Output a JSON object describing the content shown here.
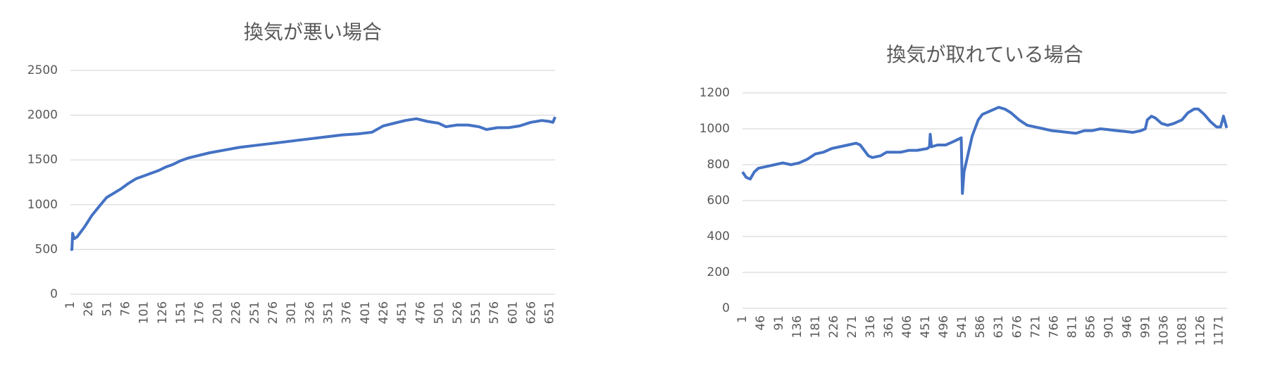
{
  "chart_data": [
    {
      "type": "line",
      "title": "換気が悪い場合",
      "color": "#4472c4",
      "xlim": [
        1,
        658
      ],
      "ylim": [
        0,
        2500
      ],
      "xticks": [
        1,
        26,
        51,
        76,
        101,
        126,
        151,
        176,
        201,
        226,
        251,
        276,
        301,
        326,
        351,
        376,
        401,
        426,
        451,
        476,
        501,
        526,
        551,
        576,
        601,
        626,
        651
      ],
      "yticks": [
        0,
        500,
        1000,
        1500,
        2000,
        2500
      ],
      "grid": true,
      "x": [
        1,
        3,
        4,
        6,
        10,
        20,
        30,
        40,
        50,
        60,
        70,
        80,
        90,
        100,
        110,
        120,
        130,
        140,
        150,
        160,
        175,
        190,
        210,
        230,
        250,
        270,
        290,
        310,
        330,
        350,
        370,
        390,
        410,
        425,
        440,
        455,
        470,
        485,
        500,
        510,
        525,
        540,
        555,
        565,
        580,
        595,
        610,
        625,
        640,
        650,
        655,
        658
      ],
      "values": [
        500,
        500,
        680,
        620,
        640,
        750,
        880,
        980,
        1080,
        1130,
        1180,
        1240,
        1290,
        1320,
        1350,
        1380,
        1420,
        1450,
        1490,
        1520,
        1550,
        1580,
        1610,
        1640,
        1660,
        1680,
        1700,
        1720,
        1740,
        1760,
        1780,
        1790,
        1810,
        1880,
        1910,
        1940,
        1960,
        1930,
        1910,
        1870,
        1890,
        1890,
        1870,
        1840,
        1860,
        1860,
        1880,
        1920,
        1940,
        1930,
        1920,
        1980
      ]
    },
    {
      "type": "line",
      "title": "換気が取れている場合",
      "color": "#4472c4",
      "xlim": [
        1,
        1191
      ],
      "ylim": [
        0,
        1200
      ],
      "xticks": [
        1,
        46,
        91,
        136,
        181,
        226,
        271,
        316,
        361,
        406,
        451,
        496,
        541,
        586,
        631,
        676,
        721,
        766,
        811,
        856,
        901,
        946,
        991,
        1036,
        1081,
        1126,
        1171
      ],
      "yticks": [
        0,
        200,
        400,
        600,
        800,
        1000,
        1200
      ],
      "grid": true,
      "x": [
        1,
        10,
        20,
        30,
        40,
        60,
        80,
        100,
        120,
        140,
        160,
        180,
        200,
        220,
        240,
        260,
        280,
        290,
        300,
        310,
        320,
        340,
        355,
        370,
        390,
        410,
        430,
        455,
        460,
        462,
        465,
        480,
        500,
        520,
        538,
        541,
        545,
        555,
        565,
        580,
        590,
        610,
        630,
        645,
        660,
        680,
        700,
        720,
        740,
        760,
        780,
        800,
        820,
        840,
        860,
        880,
        900,
        920,
        940,
        960,
        980,
        990,
        995,
        1005,
        1015,
        1030,
        1045,
        1060,
        1080,
        1095,
        1110,
        1120,
        1135,
        1150,
        1165,
        1175,
        1182,
        1190
      ],
      "values": [
        760,
        730,
        720,
        760,
        780,
        790,
        800,
        810,
        800,
        810,
        830,
        860,
        870,
        890,
        900,
        910,
        920,
        910,
        880,
        850,
        840,
        850,
        870,
        870,
        870,
        880,
        880,
        890,
        900,
        970,
        900,
        910,
        910,
        930,
        950,
        640,
        760,
        860,
        960,
        1050,
        1080,
        1100,
        1120,
        1110,
        1090,
        1050,
        1020,
        1010,
        1000,
        990,
        985,
        980,
        975,
        990,
        990,
        1000,
        995,
        990,
        985,
        980,
        990,
        1000,
        1050,
        1070,
        1060,
        1030,
        1020,
        1030,
        1050,
        1090,
        1110,
        1110,
        1080,
        1040,
        1010,
        1010,
        1070,
        1005
      ]
    }
  ]
}
